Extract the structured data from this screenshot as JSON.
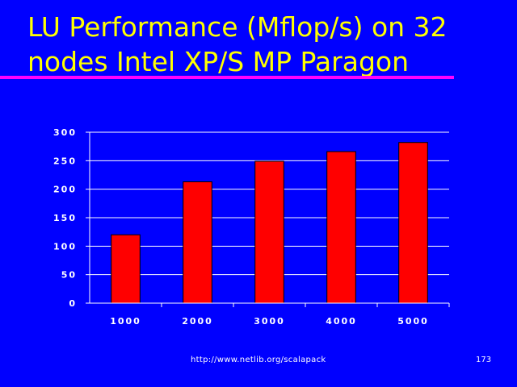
{
  "slide": {
    "title": "LU Performance (Mflop/s) on 32 nodes Intel XP/S MP Paragon",
    "footer_url": "http://www.netlib.org/scalapack",
    "page_number": "173"
  },
  "colors": {
    "background": "#0000FF",
    "title": "#FFFF00",
    "rule": "#FF00FF",
    "bar": "#FF0000",
    "text": "#FFFFFF"
  },
  "chart_data": {
    "type": "bar",
    "title": "",
    "xlabel": "",
    "ylabel": "",
    "categories": [
      "1000",
      "2000",
      "3000",
      "4000",
      "5000"
    ],
    "values": [
      120,
      213,
      249,
      266,
      282
    ],
    "ylim": [
      0,
      300
    ],
    "yticks": [
      0,
      50,
      100,
      150,
      200,
      250,
      300
    ],
    "grid": true,
    "legend": "none"
  }
}
